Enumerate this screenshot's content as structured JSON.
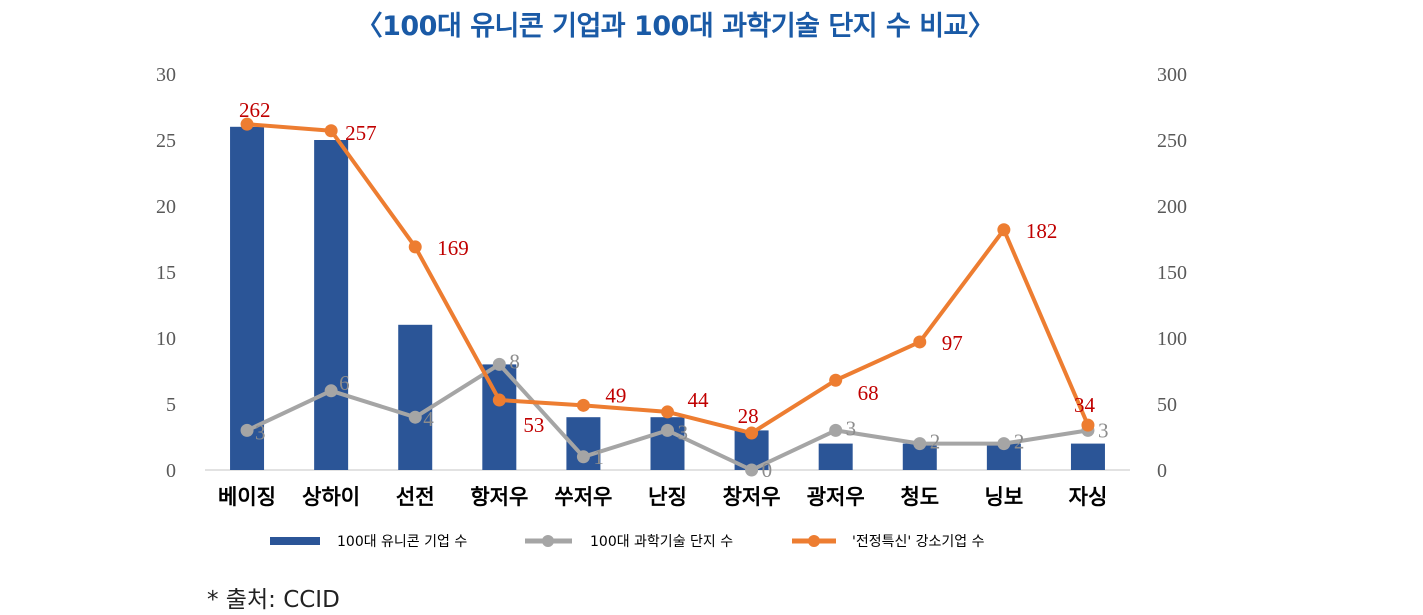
{
  "chart_data": {
    "type": "bar",
    "title": "〈100대 유니콘 기업과 100대 과학기술 단지 수 비교〉",
    "xlabel": "",
    "ylabel": "",
    "categories": [
      "베이징",
      "상하이",
      "선전",
      "항저우",
      "쑤저우",
      "난징",
      "창저우",
      "광저우",
      "청도",
      "닝보",
      "자싱"
    ],
    "series": [
      {
        "name": "100대 유니콘 기업 수",
        "kind": "bar",
        "axis": "left",
        "color": "#2b5597",
        "values": [
          26,
          25,
          11,
          8,
          4,
          4,
          3,
          2,
          2,
          2,
          2
        ]
      },
      {
        "name": "100대 과학기술 단지 수",
        "kind": "line",
        "axis": "left",
        "color": "#a5a5a5",
        "values": [
          3,
          6,
          4,
          8,
          1,
          3,
          0,
          3,
          2,
          2,
          3
        ],
        "data_labels": true
      },
      {
        "name": "'전정특신' 강소기업 수",
        "kind": "line",
        "axis": "right",
        "color": "#ed7d31",
        "values": [
          262,
          257,
          169,
          53,
          49,
          44,
          28,
          68,
          97,
          182,
          34
        ],
        "data_labels": true
      }
    ],
    "ylim": [
      0,
      30
    ],
    "y_ticks": [
      "0",
      "5",
      "10",
      "15",
      "20",
      "25",
      "30"
    ],
    "y2lim": [
      0,
      300
    ],
    "y2_ticks": [
      "0",
      "50",
      "100",
      "150",
      "200",
      "250",
      "300"
    ],
    "grid": false,
    "legend_position": "bottom"
  },
  "source_note": "* 출처: CCID"
}
